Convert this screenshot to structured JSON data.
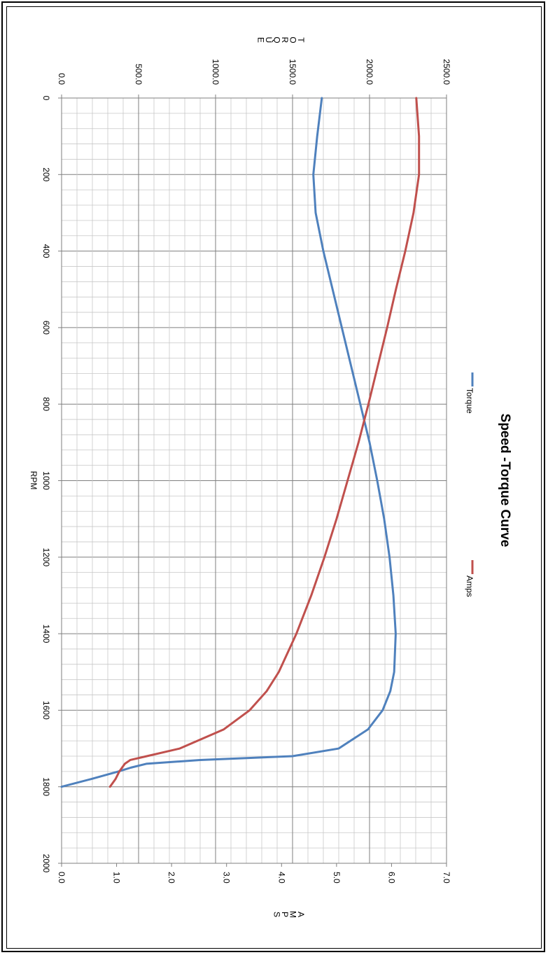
{
  "chart_data": {
    "type": "line",
    "title": "Speed -Torque Curve",
    "xlabel": "RPM",
    "ylabel_left": "TORQUE",
    "ylabel_right": "AMPS",
    "xlim": [
      0,
      2000
    ],
    "xticks": [
      "0",
      "200",
      "400",
      "600",
      "800",
      "1000",
      "1200",
      "1400",
      "1600",
      "1800",
      "2000"
    ],
    "ylim_left": [
      0,
      2500
    ],
    "yticks_left": [
      "0.0",
      "500.0",
      "1000.0",
      "1500.0",
      "2000.0",
      "2500.0"
    ],
    "ylim_right": [
      0,
      7
    ],
    "yticks_right": [
      "0.0",
      "1.0",
      "2.0",
      "3.0",
      "4.0",
      "5.0",
      "6.0",
      "7.0"
    ],
    "grid": true,
    "legend_position": "top",
    "series": [
      {
        "name": "Torque",
        "axis": "left",
        "color": "#4f81bd",
        "x": [
          0,
          100,
          200,
          300,
          400,
          500,
          600,
          700,
          800,
          900,
          1000,
          1100,
          1200,
          1300,
          1400,
          1500,
          1550,
          1600,
          1650,
          1700,
          1720,
          1730,
          1740,
          1750,
          1760,
          1780,
          1800
        ],
        "y": [
          1690,
          1660,
          1635,
          1650,
          1700,
          1760,
          1820,
          1880,
          1940,
          2000,
          2050,
          2095,
          2130,
          2155,
          2170,
          2160,
          2135,
          2085,
          1990,
          1800,
          1500,
          900,
          550,
          450,
          370,
          190,
          0
        ]
      },
      {
        "name": "Amps",
        "axis": "right",
        "color": "#c0504d",
        "x": [
          0,
          100,
          200,
          300,
          400,
          500,
          600,
          700,
          800,
          900,
          1000,
          1100,
          1200,
          1300,
          1400,
          1500,
          1550,
          1600,
          1650,
          1700,
          1720,
          1730,
          1740,
          1760,
          1780,
          1800
        ],
        "y": [
          6.45,
          6.5,
          6.5,
          6.4,
          6.25,
          6.08,
          5.92,
          5.75,
          5.58,
          5.4,
          5.2,
          5.0,
          4.78,
          4.54,
          4.27,
          3.95,
          3.73,
          3.42,
          2.95,
          2.15,
          1.55,
          1.25,
          1.15,
          1.05,
          0.98,
          0.88
        ]
      }
    ]
  }
}
